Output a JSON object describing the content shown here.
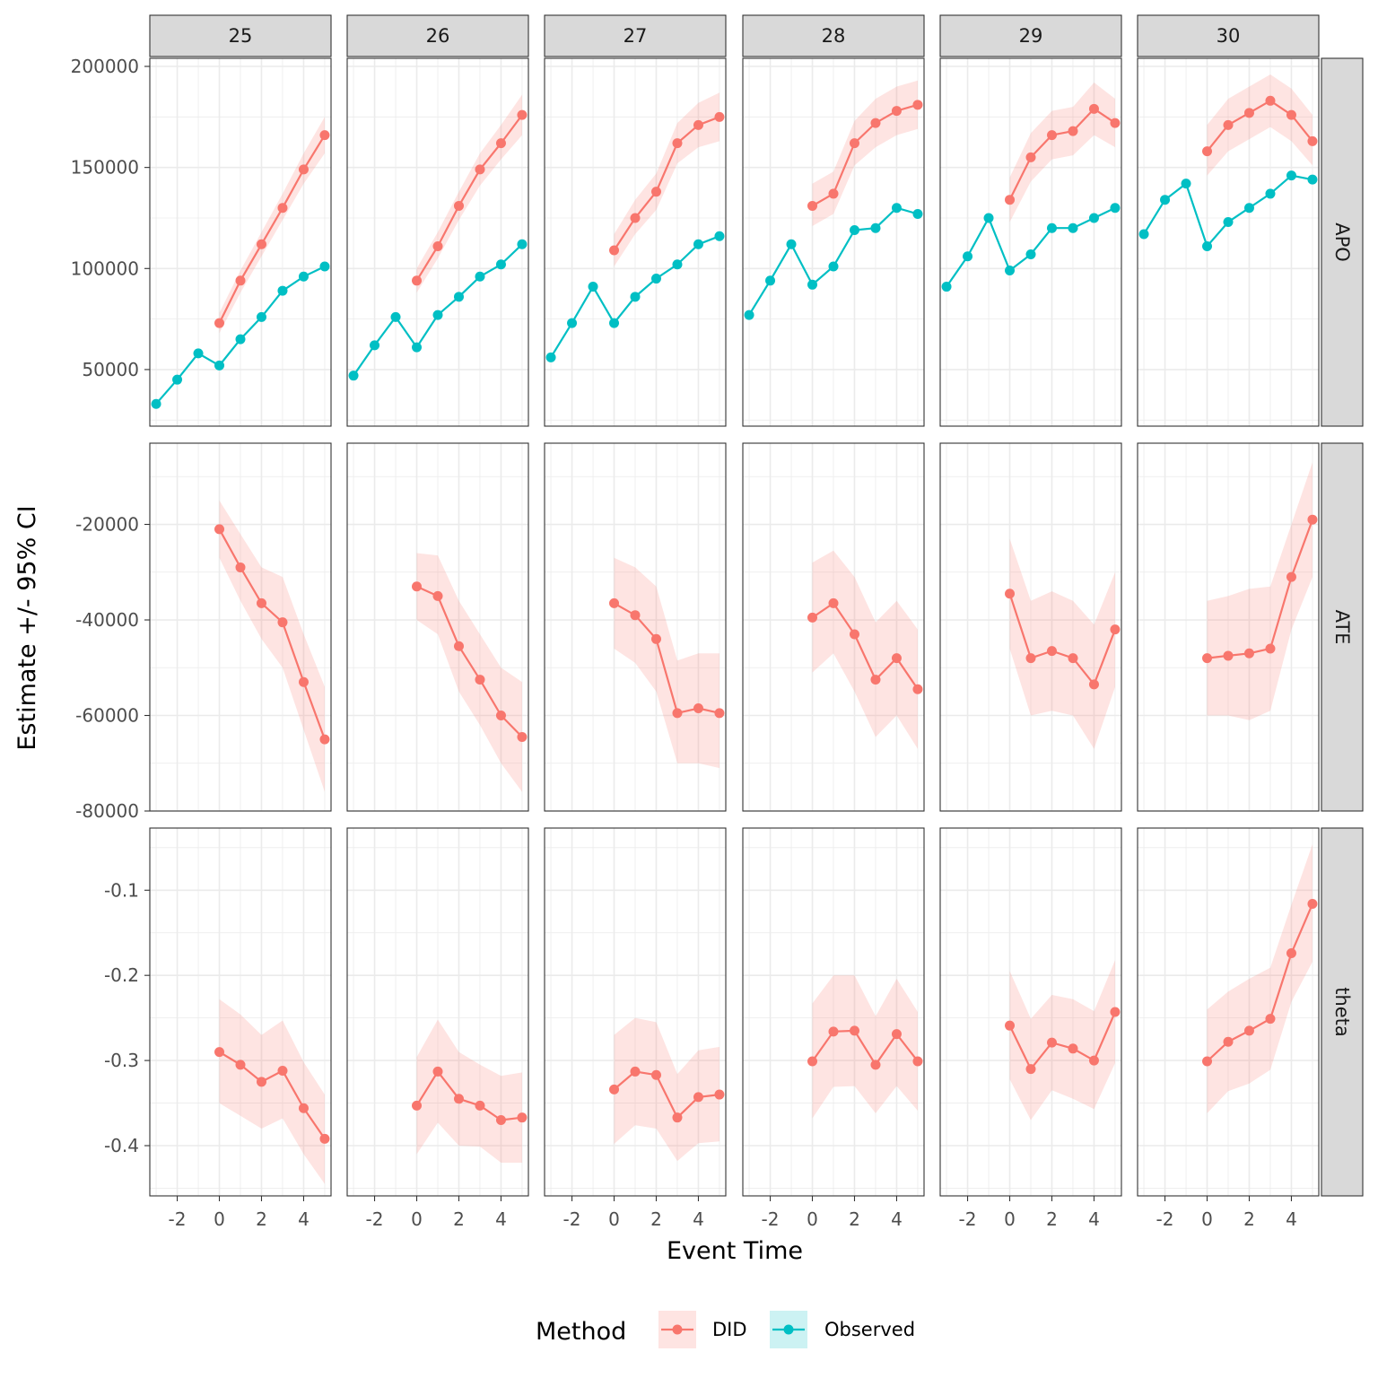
{
  "colors": {
    "DID": "#F8766D",
    "Observed": "#00BFC4",
    "strip_bg": "#D9D9D9",
    "grid": "#EBEBEB",
    "panel_border": "#333333"
  },
  "chart_data": {
    "type": "line",
    "facet_columns": [
      "25",
      "26",
      "27",
      "28",
      "29",
      "30"
    ],
    "facet_rows": [
      "APO",
      "ATE",
      "theta"
    ],
    "xlabel": "Event Time",
    "ylabel": "Estimate +/- 95% CI",
    "x_ticks": [
      -2,
      0,
      2,
      4
    ],
    "xlim": [
      -3.3,
      5.3
    ],
    "row_axes": {
      "APO": {
        "ylim": [
          22000,
          204000
        ],
        "ticks": [
          50000,
          100000,
          150000,
          200000
        ],
        "tick_labels": [
          "50000",
          "100000",
          "150000",
          "200000"
        ]
      },
      "ATE": {
        "ylim": [
          -80000,
          -3000
        ],
        "ticks": [
          -20000,
          -40000,
          -60000,
          -80000
        ],
        "tick_labels": [
          "-20000",
          "-40000",
          "-60000",
          "-80000"
        ]
      },
      "theta": {
        "ylim": [
          -0.459,
          -0.027
        ],
        "ticks": [
          -0.1,
          -0.2,
          -0.3,
          -0.4
        ],
        "tick_labels": [
          "-0.1",
          "-0.2",
          "-0.3",
          "-0.4"
        ]
      }
    },
    "legend": {
      "title": "Method",
      "position": "bottom",
      "entries": [
        "DID",
        "Observed"
      ]
    },
    "grid": true,
    "series": {
      "APO": {
        "25": {
          "Observed": {
            "x": [
              -3,
              -2,
              -1,
              0,
              1,
              2,
              3,
              4,
              5
            ],
            "y": [
              33000,
              45000,
              58000,
              52000,
              65000,
              76000,
              89000,
              96000,
              101000
            ]
          },
          "DID": {
            "x": [
              0,
              1,
              2,
              3,
              4,
              5
            ],
            "y": [
              73000,
              94000,
              112000,
              130000,
              149000,
              166000
            ],
            "lower": [
              68000,
              88000,
              106000,
              124000,
              142000,
              157000
            ],
            "upper": [
              78000,
              99000,
              118000,
              137000,
              157000,
              175000
            ]
          }
        },
        "26": {
          "Observed": {
            "x": [
              -3,
              -2,
              -1,
              0,
              1,
              2,
              3,
              4,
              5
            ],
            "y": [
              47000,
              62000,
              76000,
              61000,
              77000,
              86000,
              96000,
              102000,
              112000
            ]
          },
          "DID": {
            "x": [
              0,
              1,
              2,
              3,
              4,
              5
            ],
            "y": [
              94000,
              111000,
              131000,
              149000,
              162000,
              176000
            ],
            "lower": [
              88000,
              105000,
              124000,
              141000,
              154000,
              166000
            ],
            "upper": [
              100000,
              118000,
              138000,
              157000,
              171000,
              186000
            ]
          }
        },
        "27": {
          "Observed": {
            "x": [
              -3,
              -2,
              -1,
              0,
              1,
              2,
              3,
              4,
              5
            ],
            "y": [
              56000,
              73000,
              91000,
              73000,
              86000,
              95000,
              102000,
              112000,
              116000
            ]
          },
          "DID": {
            "x": [
              0,
              1,
              2,
              3,
              4,
              5
            ],
            "y": [
              109000,
              125000,
              138000,
              162000,
              171000,
              175000
            ],
            "lower": [
              101000,
              117000,
              129000,
              152000,
              160000,
              163000
            ],
            "upper": [
              117000,
              134000,
              147000,
              172000,
              182000,
              187000
            ]
          }
        },
        "28": {
          "Observed": {
            "x": [
              -3,
              -2,
              -1,
              0,
              1,
              2,
              3,
              4,
              5
            ],
            "y": [
              77000,
              94000,
              112000,
              92000,
              101000,
              119000,
              120000,
              130000,
              127000
            ]
          },
          "DID": {
            "x": [
              0,
              1,
              2,
              3,
              4,
              5
            ],
            "y": [
              131000,
              137000,
              162000,
              172000,
              178000,
              181000
            ],
            "lower": [
              121000,
              127000,
              151000,
              160000,
              166000,
              169000
            ],
            "upper": [
              142000,
              148000,
              173000,
              184000,
              190000,
              193000
            ]
          }
        },
        "29": {
          "Observed": {
            "x": [
              -3,
              -2,
              -1,
              0,
              1,
              2,
              3,
              4,
              5
            ],
            "y": [
              91000,
              106000,
              125000,
              99000,
              107000,
              120000,
              120000,
              125000,
              130000
            ]
          },
          "DID": {
            "x": [
              0,
              1,
              2,
              3,
              4,
              5
            ],
            "y": [
              134000,
              155000,
              166000,
              168000,
              179000,
              172000
            ],
            "lower": [
              123000,
              143000,
              154000,
              156000,
              166000,
              160000
            ],
            "upper": [
              145000,
              167000,
              178000,
              180000,
              192000,
              184000
            ]
          }
        },
        "30": {
          "Observed": {
            "x": [
              -3,
              -2,
              -1,
              0,
              1,
              2,
              3,
              4,
              5
            ],
            "y": [
              117000,
              134000,
              142000,
              111000,
              123000,
              130000,
              137000,
              146000,
              144000
            ]
          },
          "DID": {
            "x": [
              0,
              1,
              2,
              3,
              4,
              5
            ],
            "y": [
              158000,
              171000,
              177000,
              183000,
              176000,
              163000
            ],
            "lower": [
              146000,
              158000,
              164000,
              170000,
              163000,
              151000
            ],
            "upper": [
              171000,
              184000,
              190000,
              196000,
              189000,
              176000
            ]
          }
        }
      },
      "ATE": {
        "25": {
          "DID": {
            "x": [
              0,
              1,
              2,
              3,
              4,
              5
            ],
            "y": [
              -21000,
              -29000,
              -36500,
              -40500,
              -53000,
              -65000
            ],
            "lower": [
              -27000,
              -36000,
              -44000,
              -50000,
              -63000,
              -76000
            ],
            "upper": [
              -15000,
              -22000,
              -29000,
              -31000,
              -43000,
              -54000
            ]
          }
        },
        "26": {
          "DID": {
            "x": [
              0,
              1,
              2,
              3,
              4,
              5
            ],
            "y": [
              -33000,
              -35000,
              -45500,
              -52500,
              -60000,
              -64500
            ],
            "lower": [
              -40000,
              -43000,
              -55000,
              -62000,
              -70000,
              -76000
            ],
            "upper": [
              -26000,
              -26500,
              -36000,
              -43000,
              -50000,
              -53000
            ]
          }
        },
        "27": {
          "DID": {
            "x": [
              0,
              1,
              2,
              3,
              4,
              5
            ],
            "y": [
              -36500,
              -39000,
              -44000,
              -59500,
              -58500,
              -59500
            ],
            "lower": [
              -46000,
              -49000,
              -55000,
              -70000,
              -70000,
              -71000
            ],
            "upper": [
              -27000,
              -29000,
              -33000,
              -48500,
              -47000,
              -47000
            ]
          }
        },
        "28": {
          "DID": {
            "x": [
              0,
              1,
              2,
              3,
              4,
              5
            ],
            "y": [
              -39500,
              -36500,
              -43000,
              -52500,
              -48000,
              -54500
            ],
            "lower": [
              -51000,
              -47000,
              -55000,
              -64500,
              -60000,
              -67000
            ],
            "upper": [
              -28000,
              -25500,
              -31000,
              -40500,
              -36000,
              -42000
            ]
          }
        },
        "29": {
          "DID": {
            "x": [
              0,
              1,
              2,
              3,
              4,
              5
            ],
            "y": [
              -34500,
              -48000,
              -46500,
              -48000,
              -53500,
              -42000
            ],
            "lower": [
              -46000,
              -60000,
              -59000,
              -60000,
              -67000,
              -54000
            ],
            "upper": [
              -23000,
              -36000,
              -34000,
              -36000,
              -41000,
              -30000
            ]
          }
        },
        "30": {
          "DID": {
            "x": [
              0,
              1,
              2,
              3,
              4,
              5
            ],
            "y": [
              -48000,
              -47500,
              -47000,
              -46000,
              -31000,
              -19000
            ],
            "lower": [
              -60000,
              -60000,
              -61000,
              -59000,
              -42000,
              -31000
            ],
            "upper": [
              -36000,
              -35000,
              -33500,
              -33000,
              -20000,
              -7000
            ]
          }
        }
      },
      "theta": {
        "25": {
          "DID": {
            "x": [
              0,
              1,
              2,
              3,
              4,
              5
            ],
            "y": [
              -0.29,
              -0.305,
              -0.325,
              -0.312,
              -0.356,
              -0.392
            ],
            "lower": [
              -0.35,
              -0.365,
              -0.38,
              -0.368,
              -0.41,
              -0.445
            ],
            "upper": [
              -0.228,
              -0.246,
              -0.27,
              -0.253,
              -0.302,
              -0.34
            ]
          }
        },
        "26": {
          "DID": {
            "x": [
              0,
              1,
              2,
              3,
              4,
              5
            ],
            "y": [
              -0.353,
              -0.313,
              -0.345,
              -0.353,
              -0.37,
              -0.367
            ],
            "lower": [
              -0.41,
              -0.373,
              -0.4,
              -0.401,
              -0.42,
              -0.42
            ],
            "upper": [
              -0.296,
              -0.252,
              -0.29,
              -0.305,
              -0.318,
              -0.314
            ]
          }
        },
        "27": {
          "DID": {
            "x": [
              0,
              1,
              2,
              3,
              4,
              5
            ],
            "y": [
              -0.334,
              -0.313,
              -0.317,
              -0.367,
              -0.343,
              -0.34
            ],
            "lower": [
              -0.398,
              -0.376,
              -0.38,
              -0.418,
              -0.397,
              -0.395
            ],
            "upper": [
              -0.27,
              -0.25,
              -0.255,
              -0.316,
              -0.288,
              -0.284
            ]
          }
        },
        "28": {
          "DID": {
            "x": [
              0,
              1,
              2,
              3,
              4,
              5
            ],
            "y": [
              -0.301,
              -0.266,
              -0.265,
              -0.305,
              -0.269,
              -0.301
            ],
            "lower": [
              -0.368,
              -0.331,
              -0.33,
              -0.362,
              -0.33,
              -0.359
            ],
            "upper": [
              -0.233,
              -0.2,
              -0.2,
              -0.248,
              -0.204,
              -0.243
            ]
          }
        },
        "29": {
          "DID": {
            "x": [
              0,
              1,
              2,
              3,
              4,
              5
            ],
            "y": [
              -0.259,
              -0.31,
              -0.279,
              -0.286,
              -0.3,
              -0.243
            ],
            "lower": [
              -0.322,
              -0.37,
              -0.335,
              -0.345,
              -0.357,
              -0.303
            ],
            "upper": [
              -0.195,
              -0.251,
              -0.223,
              -0.228,
              -0.242,
              -0.182
            ]
          }
        },
        "30": {
          "DID": {
            "x": [
              0,
              1,
              2,
              3,
              4,
              5
            ],
            "y": [
              -0.301,
              -0.278,
              -0.265,
              -0.251,
              -0.174,
              -0.116
            ],
            "lower": [
              -0.362,
              -0.336,
              -0.327,
              -0.311,
              -0.231,
              -0.184
            ],
            "upper": [
              -0.24,
              -0.219,
              -0.204,
              -0.191,
              -0.117,
              -0.046
            ]
          }
        }
      }
    }
  }
}
